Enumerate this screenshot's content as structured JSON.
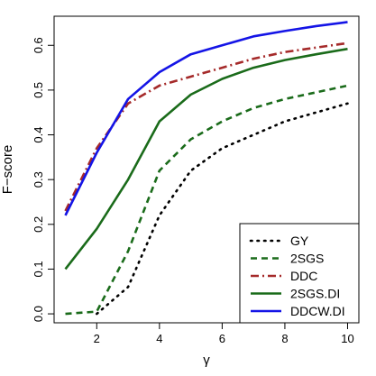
{
  "chart_data": {
    "type": "line",
    "title": "",
    "xlabel": "γ",
    "ylabel": "F−score",
    "xlim": [
      0.64,
      10.36
    ],
    "ylim": [
      -0.02,
      0.665
    ],
    "xticks": [
      2,
      4,
      6,
      8,
      10
    ],
    "xtick_labels": [
      "2",
      "4",
      "6",
      "8",
      "10"
    ],
    "yticks": [
      0.0,
      0.1,
      0.2,
      0.3,
      0.4,
      0.5,
      0.6
    ],
    "ytick_labels": [
      "0.0",
      "0.1",
      "0.2",
      "0.3",
      "0.4",
      "0.5",
      "0.6"
    ],
    "grid": false,
    "legend_position": "bottom-right",
    "x": [
      1,
      2,
      3,
      4,
      5,
      6,
      7,
      8,
      9,
      10
    ],
    "series": [
      {
        "name": "GY",
        "color": "#000000",
        "dash": "dotted",
        "values": [
          null,
          0.0,
          0.06,
          0.22,
          0.32,
          0.37,
          0.4,
          0.43,
          0.45,
          0.47
        ]
      },
      {
        "name": "2SGS",
        "color": "#1a6b1a",
        "dash": "dashed",
        "values": [
          0.0,
          0.005,
          0.14,
          0.32,
          0.39,
          0.43,
          0.46,
          0.48,
          0.495,
          0.51
        ]
      },
      {
        "name": "DDC",
        "color": "#a52a2a",
        "dash": "dotdash",
        "values": [
          0.23,
          0.37,
          0.47,
          0.51,
          0.53,
          0.55,
          0.57,
          0.585,
          0.595,
          0.605
        ]
      },
      {
        "name": "2SGS.DI",
        "color": "#1a6b1a",
        "dash": "solid",
        "values": [
          0.1,
          0.19,
          0.3,
          0.43,
          0.49,
          0.525,
          0.55,
          0.567,
          0.58,
          0.592
        ]
      },
      {
        "name": "DDCW.DI",
        "color": "#1414e6",
        "dash": "solid",
        "values": [
          0.22,
          0.36,
          0.48,
          0.54,
          0.58,
          0.6,
          0.62,
          0.632,
          0.643,
          0.652
        ]
      }
    ]
  }
}
